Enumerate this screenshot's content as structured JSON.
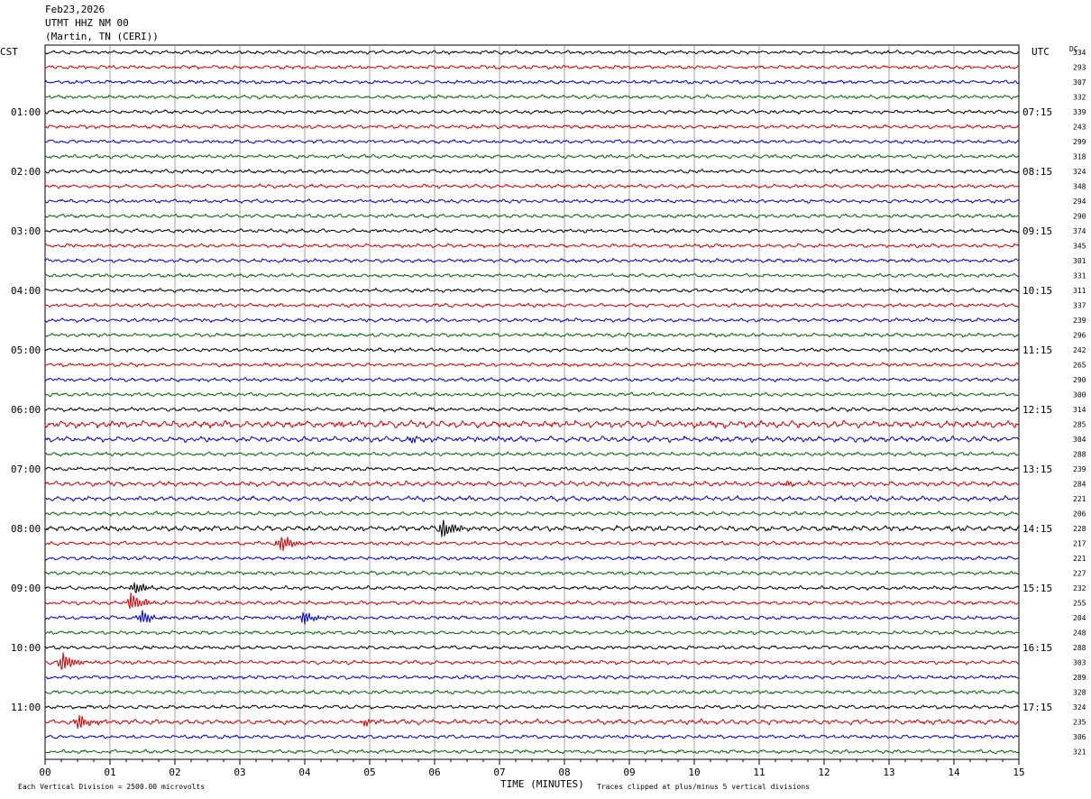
{
  "header": {
    "date": "Feb23,2026",
    "station": "UTMT HHZ NM 00",
    "location": "(Martin, TN (CERI))"
  },
  "labels": {
    "left_tz": "CST",
    "right_tz": "UTC",
    "dc_header": "DC"
  },
  "footer": {
    "scale": "Each Vertical Division = 2500.00 microvolts",
    "xlabel": "TIME (MINUTES)",
    "clip_note": "Traces clipped at plus/minus 5 vertical divisions"
  },
  "chart_data": {
    "type": "line",
    "subtype": "helicorder",
    "xlabel": "TIME (MINUTES)",
    "xlim": [
      0,
      15
    ],
    "x_ticks": [
      "00",
      "01",
      "02",
      "03",
      "04",
      "05",
      "06",
      "07",
      "08",
      "09",
      "10",
      "11",
      "12",
      "13",
      "14",
      "15"
    ],
    "trace_colors": [
      "#000000",
      "#cc0000",
      "#0000cc",
      "#006600"
    ],
    "left_hour_labels": [
      "01:00",
      "02:00",
      "03:00",
      "04:00",
      "05:00",
      "06:00",
      "07:00",
      "08:00",
      "09:00",
      "10:00",
      "11:00"
    ],
    "right_hour_labels": [
      "07:15",
      "08:15",
      "09:15",
      "10:15",
      "11:15",
      "12:15",
      "13:15",
      "14:15",
      "15:15",
      "16:15",
      "17:15"
    ],
    "dc_offsets": [
      334,
      293,
      307,
      332,
      339,
      243,
      299,
      318,
      324,
      348,
      294,
      290,
      374,
      345,
      301,
      331,
      311,
      337,
      239,
      296,
      242,
      265,
      290,
      300,
      314,
      285,
      304,
      288,
      239,
      284,
      221,
      206,
      228,
      217,
      221,
      227,
      232,
      255,
      204,
      248,
      288,
      303,
      289,
      328,
      324,
      235,
      306,
      321
    ],
    "events": [
      {
        "row": 25,
        "minute": 4.5,
        "amp": 0.3
      },
      {
        "row": 26,
        "minute": 5.6,
        "amp": 0.5
      },
      {
        "row": 29,
        "minute": 11.4,
        "amp": 0.4
      },
      {
        "row": 32,
        "minute": 6.1,
        "amp": 1.6
      },
      {
        "row": 33,
        "minute": 3.6,
        "amp": 1.4
      },
      {
        "row": 36,
        "minute": 1.35,
        "amp": 0.9
      },
      {
        "row": 37,
        "minute": 1.3,
        "amp": 1.4
      },
      {
        "row": 38,
        "minute": 1.45,
        "amp": 1.0
      },
      {
        "row": 38,
        "minute": 3.95,
        "amp": 0.9
      },
      {
        "row": 41,
        "minute": 0.25,
        "amp": 1.3
      },
      {
        "row": 45,
        "minute": 0.5,
        "amp": 1.0
      },
      {
        "row": 45,
        "minute": 4.9,
        "amp": 0.5
      }
    ]
  }
}
